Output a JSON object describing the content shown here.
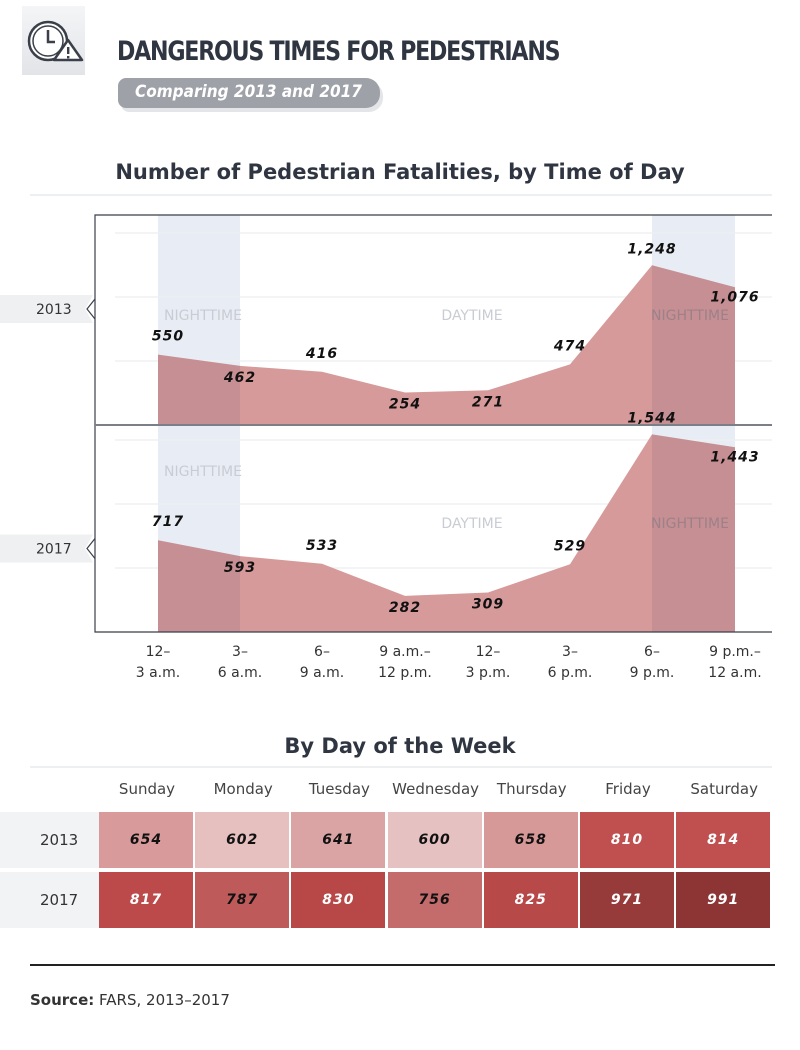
{
  "header": {
    "title": "DANGEROUS TIMES FOR PEDESTRIANS",
    "subtitle": "Comparing 2013 and 2017",
    "icon": "clock-warning-icon"
  },
  "chart_data": [
    {
      "type": "area",
      "title": "Number of Pedestrian Fatalities, by Time of Day",
      "categories": [
        "12–\n3 a.m.",
        "3–\n6 a.m.",
        "6–\n9 a.m.",
        "9 a.m.–\n12 p.m.",
        "12–\n3 p.m.",
        "3–\n6 p.m.",
        "6–\n9 p.m.",
        "9 p.m.–\n12 a.m."
      ],
      "category_lines": [
        [
          "12–",
          "3 a.m."
        ],
        [
          "3–",
          "6 a.m."
        ],
        [
          "6–",
          "9 a.m."
        ],
        [
          "9 a.m.–",
          "12 p.m."
        ],
        [
          "12–",
          "3 p.m."
        ],
        [
          "3–",
          "6 p.m."
        ],
        [
          "6–",
          "9 p.m."
        ],
        [
          "9 p.m.–",
          "12 a.m."
        ]
      ],
      "series": [
        {
          "name": "2013",
          "values": [
            550,
            462,
            416,
            254,
            271,
            474,
            1248,
            1076
          ],
          "labels": [
            "550",
            "462",
            "416",
            "254",
            "271",
            "474",
            "1,248",
            "1,076"
          ]
        },
        {
          "name": "2017",
          "values": [
            717,
            593,
            533,
            282,
            309,
            529,
            1544,
            1443
          ],
          "labels": [
            "717",
            "593",
            "533",
            "282",
            "309",
            "529",
            "1,544",
            "1,443"
          ]
        }
      ],
      "ylim": [
        0,
        1600
      ],
      "grid": true,
      "region_labels": {
        "night": "NIGHTTIME",
        "day": "DAYTIME"
      },
      "fill_color": "#d69a9a",
      "night_shade_color": "#e6ebf4"
    },
    {
      "type": "heatmap",
      "title": "By Day of the Week",
      "columns": [
        "Sunday",
        "Monday",
        "Tuesday",
        "Wednesday",
        "Thursday",
        "Friday",
        "Saturday"
      ],
      "rows": [
        {
          "name": "2013",
          "values": [
            654,
            602,
            641,
            600,
            658,
            810,
            814
          ],
          "colors": [
            "#d89a9a",
            "#e6bfbf",
            "#dba4a4",
            "#e6c1c1",
            "#d79898",
            "#c05050",
            "#c05050"
          ]
        },
        {
          "name": "2017",
          "values": [
            817,
            787,
            830,
            756,
            825,
            971,
            991
          ],
          "colors": [
            "#bc4a4a",
            "#be5a5a",
            "#b84848",
            "#c46b6b",
            "#b84949",
            "#963a3a",
            "#8d3535"
          ]
        }
      ]
    }
  ],
  "footer": {
    "source_label": "Source:",
    "source_text": "FARS, 2013–2017"
  }
}
